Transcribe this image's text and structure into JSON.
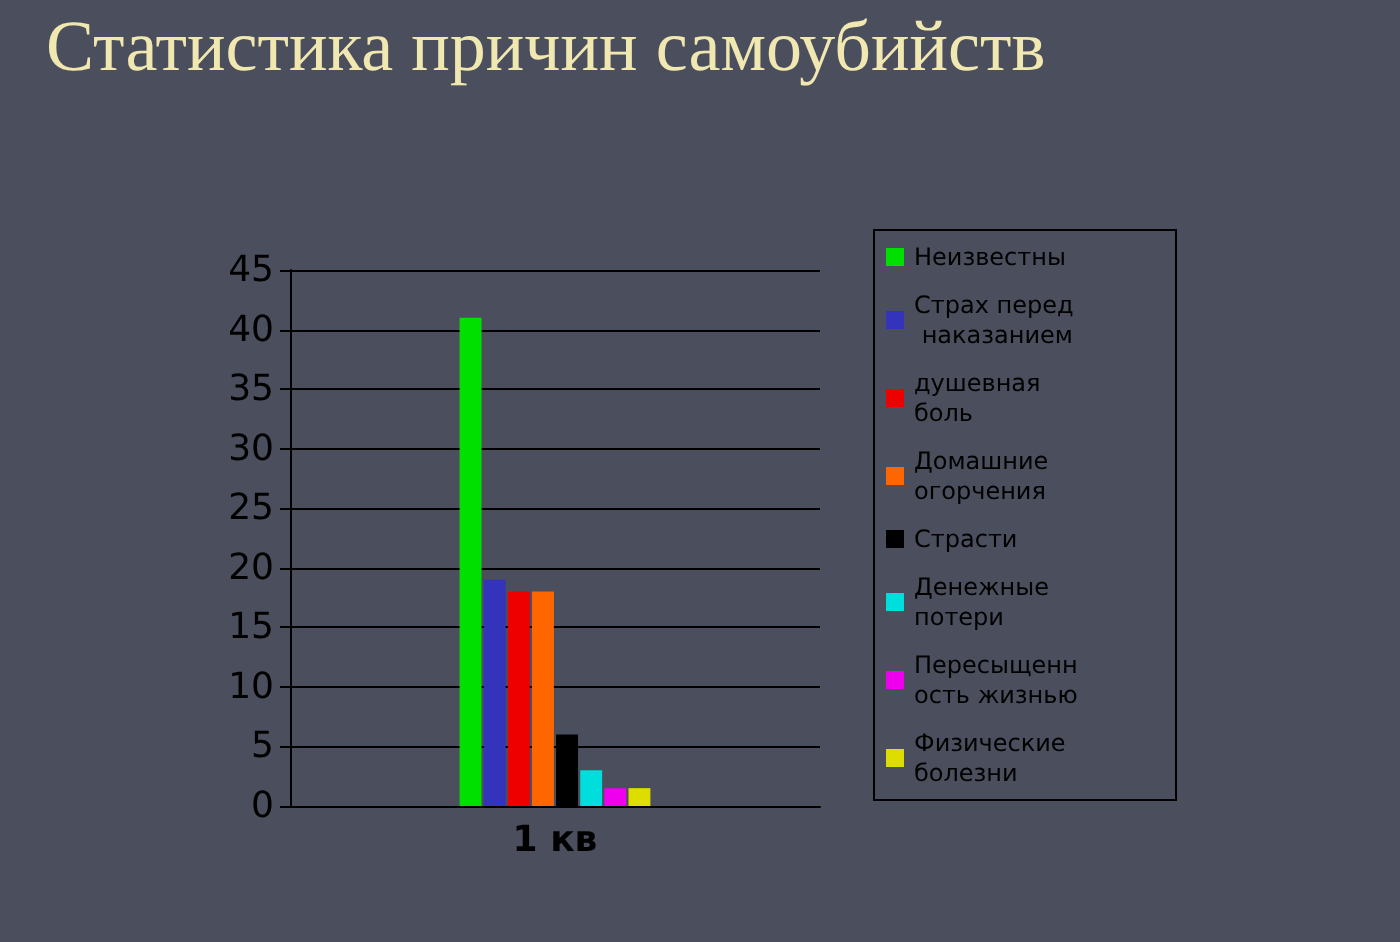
{
  "chart_data": {
    "type": "bar",
    "title": "Статистика причин самоубийств",
    "categories": [
      "1 кв"
    ],
    "series": [
      {
        "name": "Неизвестны",
        "color": "#00e000",
        "values": [
          41
        ]
      },
      {
        "name": "Страх перед наказанием",
        "color": "#3333bb",
        "values": [
          19
        ]
      },
      {
        "name": "душевная боль",
        "color": "#ee0000",
        "values": [
          18
        ]
      },
      {
        "name": "Домашние огорчения",
        "color": "#ff6600",
        "values": [
          18
        ]
      },
      {
        "name": "Страсти",
        "color": "#000000",
        "values": [
          6
        ]
      },
      {
        "name": "Денежные потери",
        "color": "#00dddd",
        "values": [
          3
        ]
      },
      {
        "name": "Пересыщенность жизнью",
        "color": "#ee00ee",
        "values": [
          1.5
        ]
      },
      {
        "name": "Физические болезни",
        "color": "#dddd00",
        "values": [
          1.5
        ]
      }
    ],
    "ylim": [
      0,
      45
    ],
    "yticks": [
      0,
      5,
      10,
      15,
      20,
      25,
      30,
      35,
      40,
      45
    ],
    "grid": "y",
    "legend": "right"
  }
}
